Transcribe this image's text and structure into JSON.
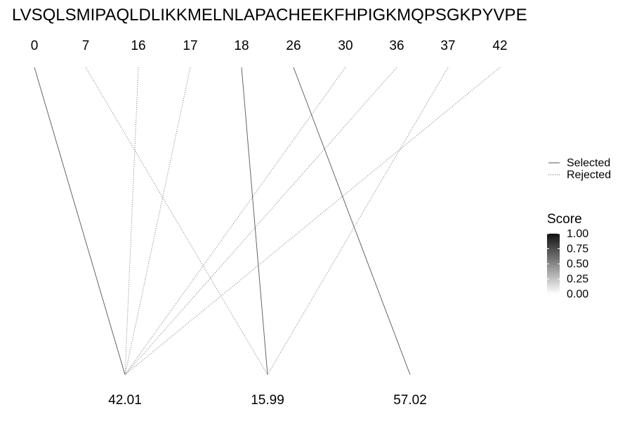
{
  "diagram": {
    "sequence": "LVSQLSMIPAQLDLIKKMELNLAPACHEEKFHPIGKMQPSGKPYVPE",
    "top_labels": [
      "0",
      "7",
      "16",
      "17",
      "18",
      "26",
      "30",
      "36",
      "37",
      "42"
    ],
    "bottom_labels": [
      "42.01",
      "15.99",
      "57.02"
    ],
    "connections": [
      {
        "from": 0,
        "to": 0,
        "status": "selected"
      },
      {
        "from": 1,
        "to": 1,
        "status": "rejected"
      },
      {
        "from": 2,
        "to": 0,
        "status": "rejected"
      },
      {
        "from": 3,
        "to": 0,
        "status": "rejected"
      },
      {
        "from": 4,
        "to": 1,
        "status": "selected"
      },
      {
        "from": 5,
        "to": 2,
        "status": "selected"
      },
      {
        "from": 6,
        "to": 0,
        "status": "rejected"
      },
      {
        "from": 7,
        "to": 0,
        "status": "rejected"
      },
      {
        "from": 8,
        "to": 1,
        "status": "rejected"
      },
      {
        "from": 9,
        "to": 0,
        "status": "rejected"
      }
    ]
  },
  "legend": {
    "line_types": [
      {
        "label": "Selected",
        "style": "solid"
      },
      {
        "label": "Rejected",
        "style": "dotted"
      }
    ],
    "score": {
      "title": "Score",
      "ticks": [
        "1.00",
        "0.75",
        "0.50",
        "0.25",
        "0.00"
      ],
      "color_high": "#111111",
      "color_low": "#ffffff"
    }
  },
  "colors": {
    "selected_line": "#666666",
    "rejected_line": "#777777"
  }
}
